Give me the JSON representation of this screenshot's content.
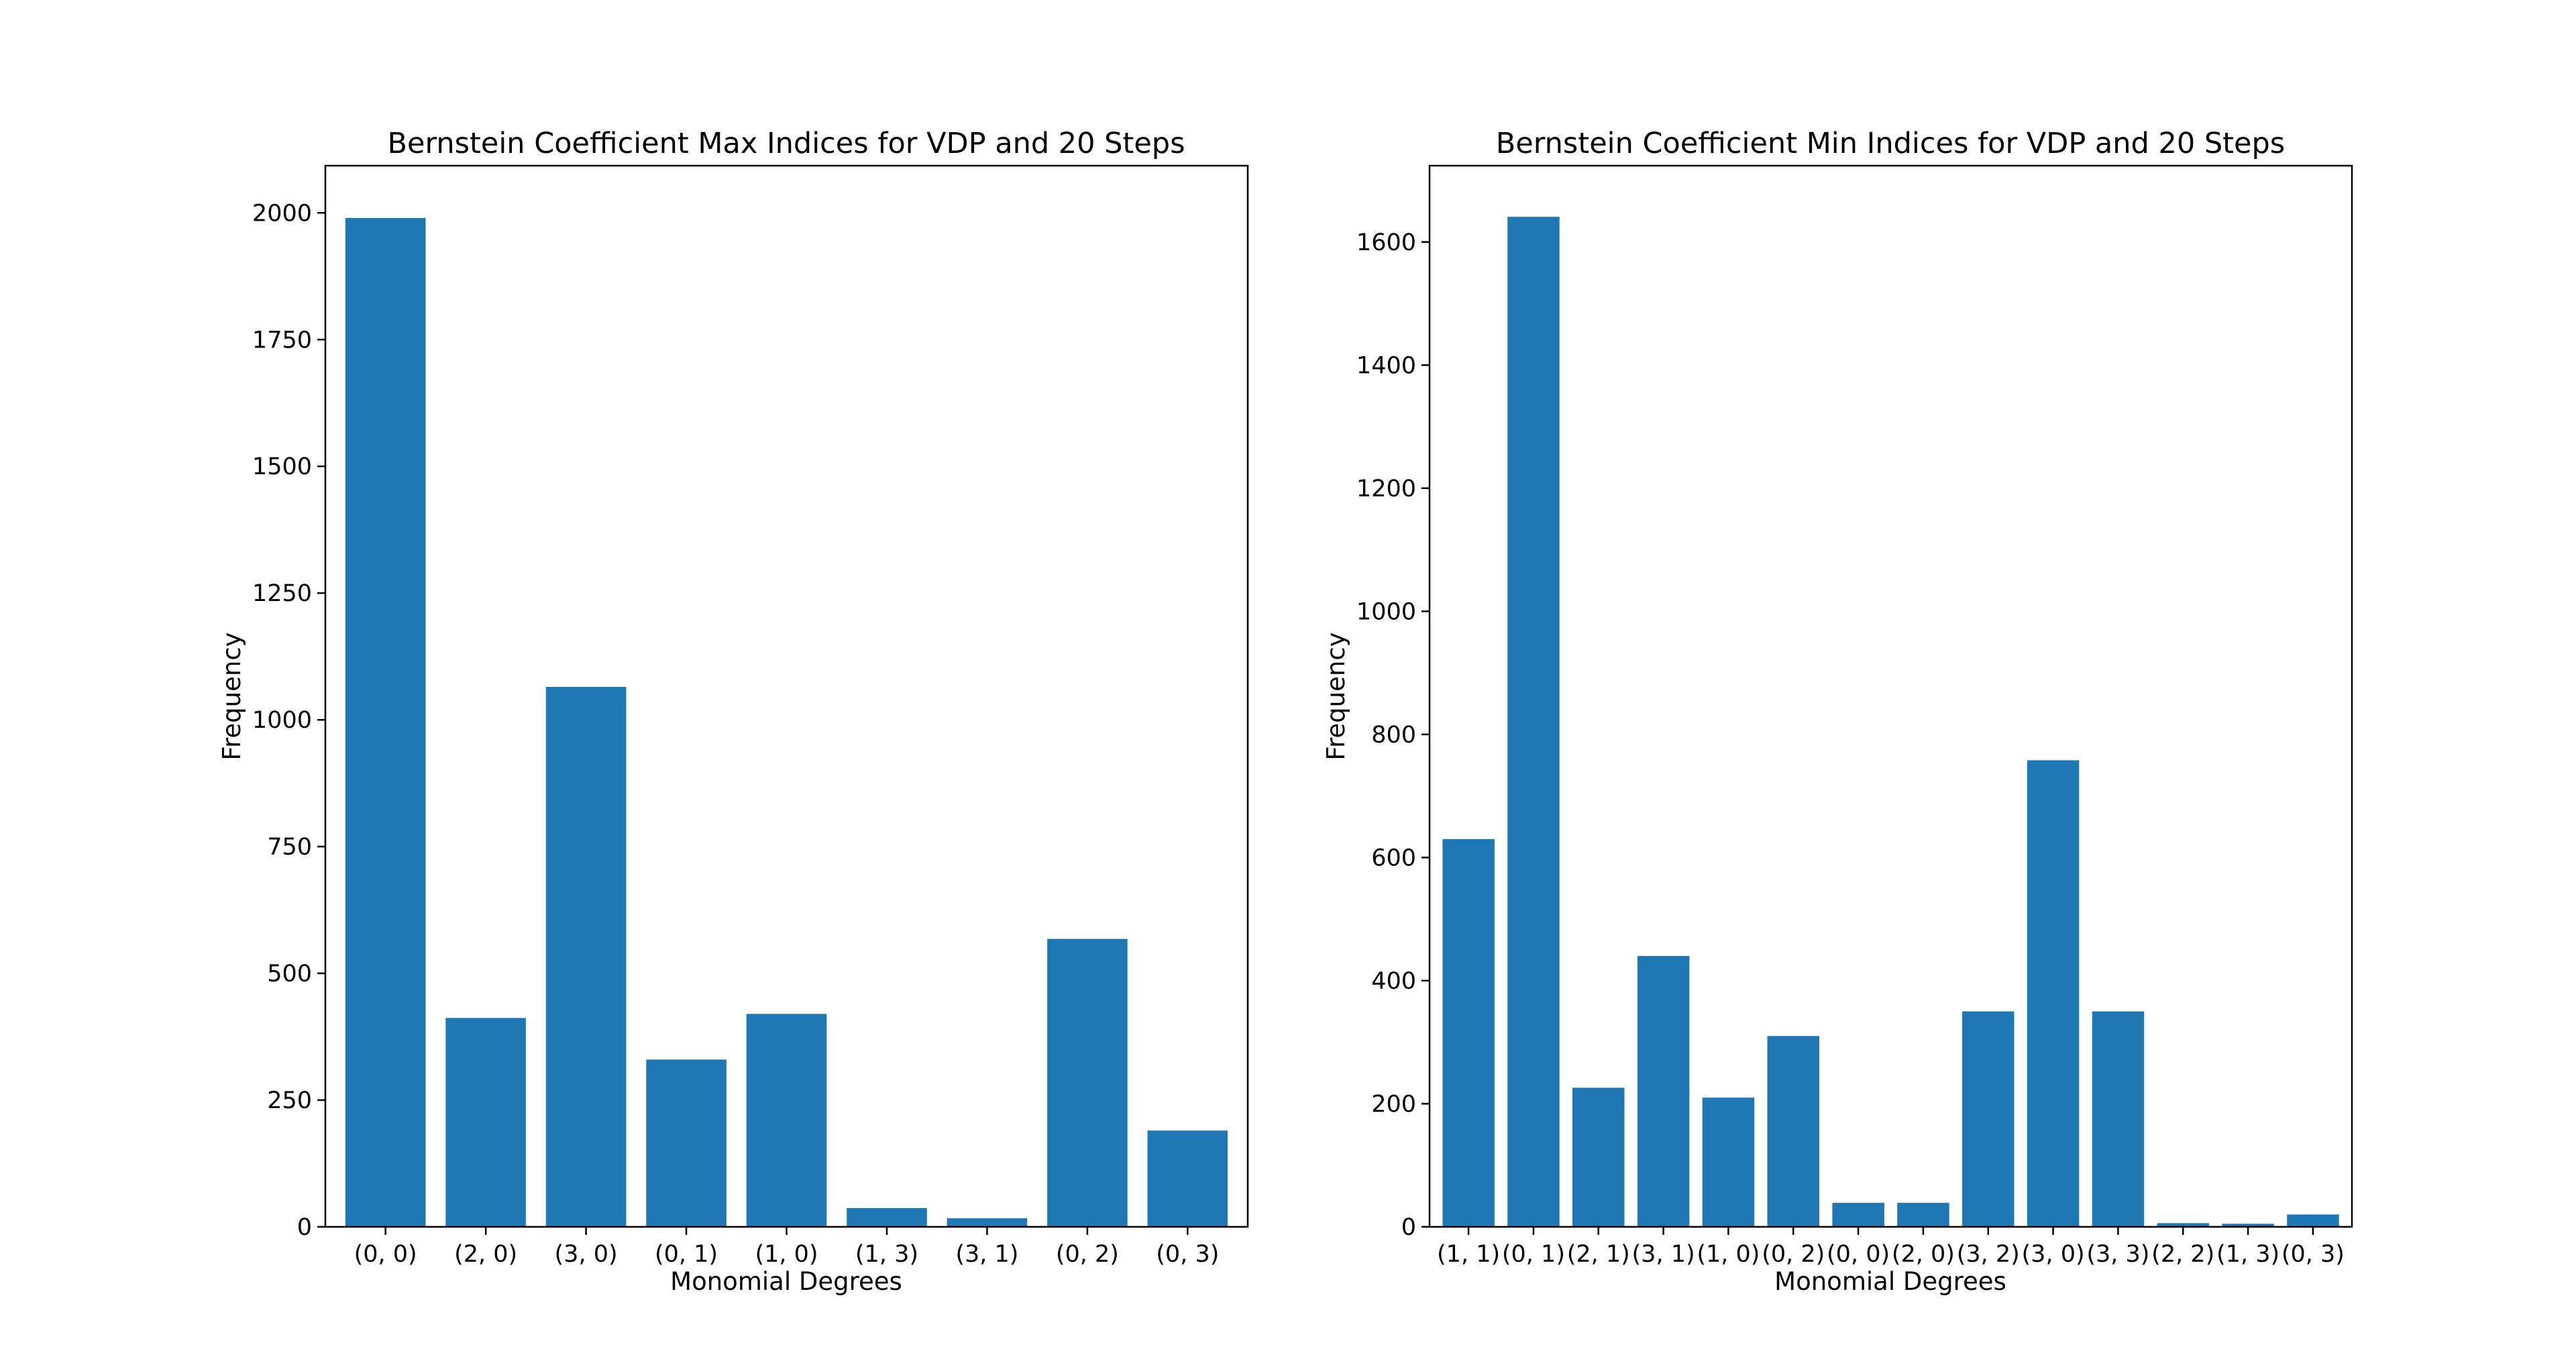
{
  "chart_data": [
    {
      "type": "bar",
      "title": "Bernstein Coefficient Max Indices for VDP and 20 Steps",
      "xlabel": "Monomial Degrees",
      "ylabel": "Frequency",
      "categories": [
        "(0, 0)",
        "(2, 0)",
        "(3, 0)",
        "(0, 1)",
        "(1, 0)",
        "(1, 3)",
        "(3, 1)",
        "(0, 2)",
        "(0, 3)"
      ],
      "values": [
        1990,
        412,
        1065,
        330,
        420,
        37,
        17,
        568,
        190
      ],
      "ylim": [
        0,
        2093
      ],
      "yticks": [
        0,
        250,
        500,
        750,
        1000,
        1250,
        1500,
        1750,
        2000
      ],
      "color": "#1f77b4",
      "grid": false
    },
    {
      "type": "bar",
      "title": "Bernstein Coefficient Min Indices for VDP and 20 Steps",
      "xlabel": "Monomial Degrees",
      "ylabel": "Frequency",
      "categories": [
        "(1, 1)",
        "(0, 1)",
        "(2, 1)",
        "(3, 1)",
        "(1, 0)",
        "(0, 2)",
        "(0, 0)",
        "(2, 0)",
        "(3, 2)",
        "(3, 0)",
        "(3, 3)",
        "(2, 2)",
        "(1, 3)",
        "(0, 3)"
      ],
      "values": [
        630,
        1641,
        226,
        440,
        210,
        310,
        39,
        39,
        350,
        758,
        350,
        6,
        5,
        20
      ],
      "ylim": [
        0,
        1724
      ],
      "yticks": [
        0,
        200,
        400,
        600,
        800,
        1000,
        1200,
        1400,
        1600
      ],
      "color": "#1f77b4",
      "grid": false
    }
  ]
}
